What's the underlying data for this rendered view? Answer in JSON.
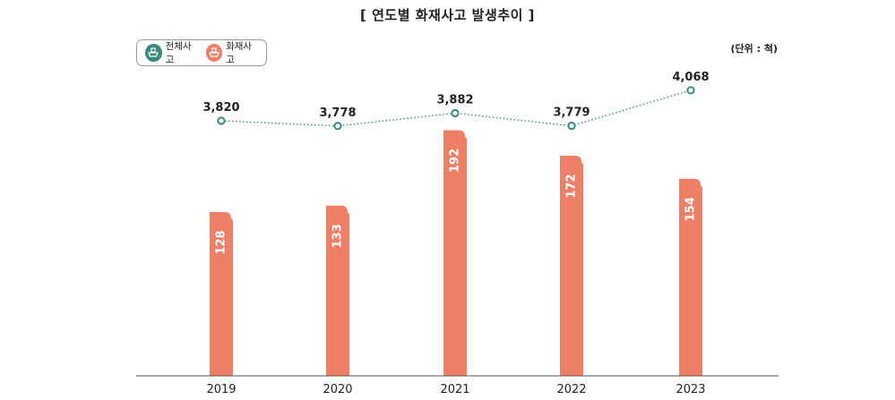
{
  "chart_data": {
    "type": "bar",
    "title": "[  연도별 화재사고 발생추이  ]",
    "unit": "(단위 : 척)",
    "categories": [
      "2019",
      "2020",
      "2021",
      "2022",
      "2023"
    ],
    "series": [
      {
        "name": "전체사고",
        "type": "line",
        "color": "#3a8a7c",
        "values": [
          3820,
          3778,
          3882,
          3779,
          4068
        ],
        "labels": [
          "3,820",
          "3,778",
          "3,882",
          "3,779",
          "4,068"
        ]
      },
      {
        "name": "화재사고",
        "type": "bar",
        "color": "#ef8068",
        "values": [
          128,
          133,
          192,
          172,
          154
        ],
        "labels": [
          "128",
          "133",
          "192",
          "172",
          "154"
        ]
      }
    ],
    "legend": "top-left",
    "grid": false
  },
  "legend_icons": {
    "total": "ship-icon",
    "fire": "ship-icon"
  }
}
